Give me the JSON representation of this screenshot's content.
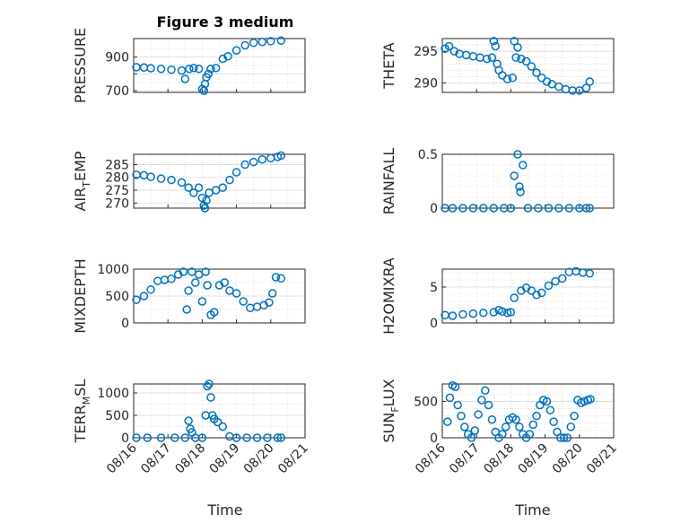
{
  "figure": {
    "title": "Figure 3 medium",
    "xlabel": "Time"
  },
  "colors": {
    "marker": "#0072BD",
    "axis": "#262626",
    "grid": "#d9d9d9"
  },
  "chart_data": [
    {
      "type": "scatter",
      "ylabel": "PRESSURE",
      "yticks": [
        700,
        800,
        900
      ],
      "ytick_labels": [
        "700",
        "",
        "900"
      ],
      "ylim": [
        690,
        1010
      ],
      "minor_y": [
        750,
        850,
        950
      ],
      "xlim": [
        0,
        5
      ],
      "xticks": [],
      "x": [
        0.08,
        0.3,
        0.5,
        0.8,
        1.1,
        1.4,
        1.5,
        1.62,
        1.75,
        1.9,
        2.0,
        2.05,
        2.08,
        2.12,
        2.18,
        2.25,
        2.4,
        2.6,
        2.75,
        3.0,
        3.25,
        3.5,
        3.75,
        4.0,
        4.3
      ],
      "y": [
        840,
        838,
        834,
        830,
        825,
        820,
        770,
        830,
        835,
        830,
        710,
        700,
        740,
        780,
        800,
        830,
        835,
        890,
        905,
        940,
        970,
        985,
        990,
        995,
        998
      ]
    },
    {
      "type": "scatter",
      "ylabel": "THETA",
      "yticks": [
        290,
        295
      ],
      "ytick_labels": [
        "290",
        "295"
      ],
      "ylim": [
        288.5,
        297
      ],
      "minor_y": [
        291,
        292,
        293,
        294,
        296
      ],
      "xlim": [
        0,
        5
      ],
      "xticks": [],
      "x": [
        0.08,
        0.2,
        0.35,
        0.5,
        0.7,
        0.9,
        1.1,
        1.3,
        1.45,
        1.5,
        1.55,
        1.6,
        1.65,
        1.75,
        1.9,
        2.05,
        2.1,
        2.15,
        2.2,
        2.3,
        2.45,
        2.6,
        2.75,
        2.9,
        3.05,
        3.2,
        3.4,
        3.6,
        3.8,
        4.0,
        4.2,
        4.3
      ],
      "y": [
        295.4,
        295.8,
        295.0,
        294.6,
        294.4,
        294.2,
        294.0,
        293.8,
        294.0,
        296.6,
        295.8,
        293.0,
        292.0,
        291.2,
        290.6,
        290.8,
        296.6,
        294.0,
        295.6,
        293.8,
        293.4,
        292.6,
        291.6,
        290.8,
        290.2,
        289.8,
        289.4,
        289.0,
        288.8,
        288.8,
        289.2,
        290.2
      ]
    },
    {
      "type": "scatter",
      "ylabel": "AIR_TEMP",
      "yticks": [
        270,
        275,
        280,
        285
      ],
      "ytick_labels": [
        "270",
        "275",
        "280",
        "285"
      ],
      "ylim": [
        268,
        289
      ],
      "minor_y": [],
      "xlim": [
        0,
        5
      ],
      "xticks": [],
      "x": [
        0.08,
        0.3,
        0.5,
        0.8,
        1.1,
        1.4,
        1.6,
        1.75,
        1.9,
        2.0,
        2.05,
        2.08,
        2.12,
        2.2,
        2.4,
        2.6,
        2.8,
        3.0,
        3.25,
        3.5,
        3.75,
        4.0,
        4.2,
        4.3
      ],
      "y": [
        281,
        280.8,
        280.2,
        279.5,
        279,
        278,
        276,
        274,
        276,
        272,
        269,
        268,
        271,
        274,
        275,
        276,
        279,
        282,
        285,
        286,
        287,
        287.5,
        288,
        288.5
      ]
    },
    {
      "type": "scatter",
      "ylabel": "RAINFALL",
      "yticks": [
        0,
        0.5
      ],
      "ytick_labels": [
        "0",
        "0.5"
      ],
      "ylim": [
        0,
        0.5
      ],
      "minor_y": [
        0.1,
        0.2,
        0.3,
        0.4
      ],
      "xlim": [
        0,
        5
      ],
      "xticks": [],
      "x": [
        0.08,
        0.3,
        0.6,
        0.9,
        1.2,
        1.5,
        1.8,
        2.0,
        2.1,
        2.2,
        2.25,
        2.28,
        2.35,
        2.5,
        2.8,
        3.1,
        3.4,
        3.7,
        4.0,
        4.2,
        4.3
      ],
      "y": [
        0,
        0,
        0,
        0,
        0,
        0,
        0,
        0,
        0.3,
        0.5,
        0.2,
        0.15,
        0.4,
        0,
        0,
        0,
        0,
        0,
        0,
        0,
        0
      ]
    },
    {
      "type": "scatter",
      "ylabel": "MIXDEPTH",
      "yticks": [
        0,
        500,
        1000
      ],
      "ytick_labels": [
        "0",
        "500",
        "1000"
      ],
      "ylim": [
        0,
        1000
      ],
      "minor_y": [
        250,
        750
      ],
      "xlim": [
        0,
        5
      ],
      "xticks": [],
      "x": [
        0.08,
        0.3,
        0.5,
        0.7,
        0.9,
        1.1,
        1.3,
        1.45,
        1.55,
        1.6,
        1.7,
        1.8,
        1.9,
        2.0,
        2.1,
        2.15,
        2.25,
        2.35,
        2.5,
        2.65,
        2.8,
        3.0,
        3.2,
        3.4,
        3.6,
        3.8,
        3.95,
        4.05,
        4.15,
        4.3
      ],
      "y": [
        430,
        500,
        620,
        780,
        800,
        820,
        900,
        950,
        250,
        600,
        950,
        750,
        900,
        400,
        950,
        700,
        150,
        200,
        700,
        750,
        600,
        550,
        400,
        280,
        300,
        330,
        380,
        550,
        850,
        830
      ]
    },
    {
      "type": "scatter",
      "ylabel": "H2OMIXRA",
      "yticks": [
        0,
        5
      ],
      "ytick_labels": [
        "0",
        "5"
      ],
      "ylim": [
        0,
        7.5
      ],
      "minor_y": [
        1,
        2,
        3,
        4,
        6,
        7
      ],
      "xlim": [
        0,
        5
      ],
      "xticks": [],
      "x": [
        0.08,
        0.3,
        0.6,
        0.9,
        1.2,
        1.5,
        1.65,
        1.75,
        1.9,
        2.0,
        2.1,
        2.3,
        2.45,
        2.6,
        2.75,
        2.9,
        3.1,
        3.3,
        3.5,
        3.7,
        3.9,
        4.1,
        4.3
      ],
      "y": [
        1.1,
        1.0,
        1.2,
        1.3,
        1.4,
        1.5,
        1.8,
        1.6,
        1.4,
        1.5,
        3.5,
        4.5,
        4.9,
        4.5,
        3.9,
        4.2,
        5.2,
        5.8,
        6.2,
        7.1,
        7.2,
        7.0,
        6.9
      ]
    },
    {
      "type": "scatter",
      "ylabel": "TERR_MSL",
      "yticks": [
        0,
        500,
        1000
      ],
      "ytick_labels": [
        "0",
        "500",
        "1000"
      ],
      "ylim": [
        0,
        1200
      ],
      "minor_y": [
        250,
        750
      ],
      "xlim": [
        0,
        5
      ],
      "xticks": [
        1,
        2,
        3,
        4,
        5
      ],
      "xtick_labels": [
        "08/17",
        "08/18",
        "08/19",
        "08/20",
        "08/21"
      ],
      "x_axis_first_label": "08/16",
      "x": [
        0.08,
        0.4,
        0.8,
        1.2,
        1.5,
        1.6,
        1.65,
        1.7,
        1.8,
        2.0,
        2.1,
        2.15,
        2.2,
        2.25,
        2.3,
        2.35,
        2.45,
        2.6,
        2.8,
        3.0,
        3.3,
        3.6,
        3.9,
        4.2,
        4.3
      ],
      "y": [
        0,
        0,
        0,
        0,
        0,
        380,
        200,
        120,
        0,
        0,
        500,
        1150,
        1200,
        900,
        500,
        420,
        350,
        250,
        30,
        0,
        0,
        0,
        0,
        0,
        0
      ]
    },
    {
      "type": "scatter",
      "ylabel": "SUN_FLUX",
      "yticks": [
        0,
        500
      ],
      "ytick_labels": [
        "0",
        "500"
      ],
      "ylim": [
        0,
        740
      ],
      "minor_y": [
        100,
        200,
        300,
        400,
        600,
        700
      ],
      "xlim": [
        0,
        5
      ],
      "xticks": [
        1,
        2,
        3,
        4,
        5
      ],
      "xtick_labels": [
        "08/17",
        "08/18",
        "08/19",
        "08/20",
        "08/21"
      ],
      "x_axis_first_label": "08/16",
      "x": [
        0.15,
        0.22,
        0.3,
        0.38,
        0.45,
        0.55,
        0.65,
        0.75,
        0.85,
        0.95,
        1.05,
        1.15,
        1.25,
        1.35,
        1.45,
        1.55,
        1.65,
        1.75,
        1.85,
        1.95,
        2.05,
        2.15,
        2.25,
        2.35,
        2.45,
        2.55,
        2.65,
        2.75,
        2.85,
        2.95,
        3.05,
        3.15,
        3.25,
        3.35,
        3.45,
        3.55,
        3.65,
        3.75,
        3.85,
        3.95,
        4.05,
        4.15,
        4.25,
        4.32
      ],
      "y": [
        220,
        550,
        720,
        700,
        450,
        300,
        150,
        50,
        0,
        100,
        320,
        520,
        650,
        450,
        250,
        80,
        0,
        50,
        150,
        250,
        280,
        250,
        150,
        50,
        0,
        50,
        180,
        300,
        450,
        520,
        500,
        380,
        220,
        80,
        0,
        0,
        0,
        150,
        300,
        520,
        480,
        500,
        520,
        530
      ]
    }
  ]
}
